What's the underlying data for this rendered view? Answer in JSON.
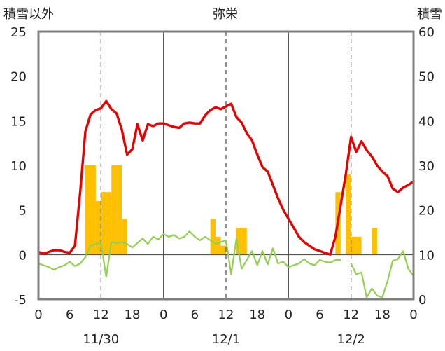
{
  "chart_data": {
    "type": "bar+line",
    "title": "弥栄",
    "left_axis_label": "積雪以外",
    "right_axis_label": "積雪",
    "left_ylim": [
      -5,
      25
    ],
    "left_yticks": [
      -5,
      0,
      5,
      10,
      15,
      20,
      25
    ],
    "right_ylim": [
      0,
      60
    ],
    "right_yticks": [
      0,
      10,
      20,
      30,
      40,
      50,
      60
    ],
    "x_range_hours": [
      0,
      72
    ],
    "x_tick_labels": [
      "0",
      "6",
      "12",
      "18",
      "0",
      "6",
      "12",
      "18",
      "0",
      "6",
      "12",
      "18",
      "0"
    ],
    "date_labels": [
      {
        "label": "11/30",
        "hour": 12
      },
      {
        "label": "12/1",
        "hour": 36
      },
      {
        "label": "12/2",
        "hour": 60
      }
    ],
    "grid": {
      "solid_hours": [
        24,
        48
      ],
      "dashed_hours": [
        12,
        36,
        60
      ],
      "zero_line": true
    },
    "colors": {
      "temperature": "#e60000",
      "wind": "#92d050",
      "precipitation": "#ffc000",
      "snow_depth": "#7030a0",
      "frame": "#7f7f7f"
    },
    "series": [
      {
        "type": "line",
        "axis": "left",
        "x_hours": [
          0,
          1,
          2,
          3,
          4,
          5,
          6,
          7,
          8,
          9,
          10,
          11,
          12,
          13,
          14,
          15,
          16,
          17,
          18,
          19,
          20,
          21,
          22,
          23,
          24,
          25,
          26,
          27,
          28,
          29,
          30,
          31,
          32,
          33,
          34,
          35,
          36,
          37,
          38,
          39,
          40,
          41,
          42,
          43,
          44,
          45,
          46,
          47,
          48,
          49,
          50,
          51,
          52,
          53,
          54,
          55,
          56,
          57,
          58,
          59,
          60,
          61,
          62,
          63,
          64,
          65,
          66,
          67,
          68,
          69,
          70,
          71,
          72
        ],
        "values": [
          0.3,
          0.1,
          0.3,
          0.5,
          0.5,
          0.3,
          0.2,
          1.0,
          7.0,
          13.8,
          15.7,
          16.2,
          16.4,
          17.2,
          16.3,
          15.8,
          14.0,
          11.2,
          11.8,
          14.6,
          12.8,
          14.6,
          14.4,
          14.7,
          14.7,
          14.5,
          14.3,
          14.2,
          14.7,
          14.8,
          14.7,
          14.7,
          15.6,
          16.2,
          16.5,
          16.3,
          16.6,
          16.9,
          15.4,
          14.8,
          13.6,
          12.8,
          11.2,
          9.8,
          9.3,
          7.8,
          6.3,
          5.0,
          4.0,
          3.0,
          2.0,
          1.4,
          1.0,
          0.6,
          0.4,
          0.2,
          0.0,
          2.0,
          5.5,
          9.0,
          13.2,
          11.5,
          12.7,
          11.7,
          11.0,
          10.0,
          9.3,
          8.8,
          7.4,
          7.0,
          7.5,
          7.8,
          8.2
        ]
      },
      {
        "type": "line",
        "axis": "left",
        "x_hours": [
          0,
          1,
          2,
          3,
          4,
          5,
          6,
          7,
          8,
          9,
          10,
          11,
          12,
          13,
          14,
          15,
          16,
          17,
          18,
          19,
          20,
          21,
          22,
          23,
          24,
          25,
          26,
          27,
          28,
          29,
          30,
          31,
          32,
          33,
          34,
          35,
          36,
          37,
          38,
          39,
          40,
          41,
          42,
          43,
          44,
          45,
          46,
          47,
          48,
          49,
          50,
          51,
          52,
          53,
          54,
          55,
          56,
          57,
          58,
          59,
          60,
          61,
          62,
          63,
          64,
          65,
          66,
          67,
          68,
          69,
          70,
          71,
          72
        ],
        "values": [
          -1.0,
          -1.2,
          -1.4,
          -1.7,
          -1.4,
          -1.2,
          -0.8,
          -1.3,
          -1.0,
          -0.3,
          1.0,
          1.2,
          1.3,
          -2.5,
          1.4,
          1.3,
          1.4,
          1.2,
          0.8,
          1.3,
          1.8,
          1.2,
          2.0,
          1.7,
          2.3,
          2.0,
          2.2,
          1.8,
          2.0,
          2.6,
          2.0,
          1.6,
          2.0,
          1.6,
          1.2,
          1.4,
          1.6,
          -2.2,
          1.8,
          -1.6,
          -0.6,
          0.4,
          -1.2,
          0.4,
          -1.1,
          0.7,
          -1.0,
          -0.8,
          -1.4,
          -1.2,
          -1.0,
          -0.5,
          -1.0,
          -1.2,
          -0.6,
          -0.8,
          -0.9,
          -0.6,
          -0.6,
          null,
          -1.0,
          -2.2,
          -2.0,
          -4.8,
          -3.8,
          -4.6,
          -4.8,
          -3.0,
          -0.7,
          -0.5,
          0.4,
          -1.6,
          -2.4
        ]
      },
      {
        "type": "bar",
        "axis": "left",
        "bars": [
          {
            "start_hour": 9,
            "end_hour": 10,
            "value": 10
          },
          {
            "start_hour": 10,
            "end_hour": 11,
            "value": 10
          },
          {
            "start_hour": 11,
            "end_hour": 12,
            "value": 6
          },
          {
            "start_hour": 12,
            "end_hour": 13,
            "value": 7
          },
          {
            "start_hour": 13,
            "end_hour": 14,
            "value": 7
          },
          {
            "start_hour": 14,
            "end_hour": 15,
            "value": 10
          },
          {
            "start_hour": 15,
            "end_hour": 16,
            "value": 10
          },
          {
            "start_hour": 16,
            "end_hour": 17,
            "value": 4
          },
          {
            "start_hour": 33,
            "end_hour": 34,
            "value": 4
          },
          {
            "start_hour": 34,
            "end_hour": 35,
            "value": 2
          },
          {
            "start_hour": 35,
            "end_hour": 36,
            "value": 1
          },
          {
            "start_hour": 38,
            "end_hour": 39,
            "value": 3
          },
          {
            "start_hour": 39,
            "end_hour": 40,
            "value": 3
          },
          {
            "start_hour": 57,
            "end_hour": 58,
            "value": 7
          },
          {
            "start_hour": 59,
            "end_hour": 60,
            "value": 9
          },
          {
            "start_hour": 60,
            "end_hour": 61,
            "value": 2
          },
          {
            "start_hour": 61,
            "end_hour": 62,
            "value": 2
          },
          {
            "start_hour": 64,
            "end_hour": 65,
            "value": 3
          }
        ]
      },
      {
        "type": "line",
        "axis": "right",
        "x_hours": [
          0,
          72
        ],
        "values": [
          0,
          0
        ]
      }
    ]
  }
}
